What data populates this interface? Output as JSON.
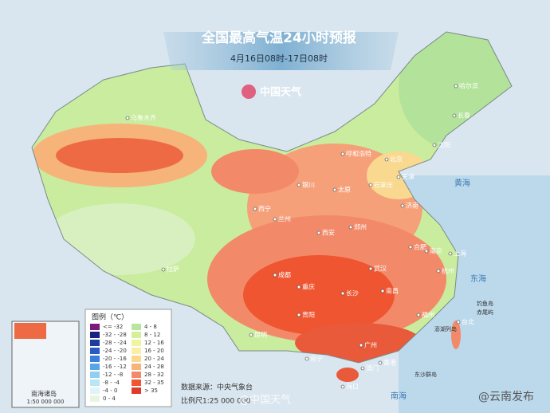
{
  "header": {
    "title": "全国最高气温24小时预报",
    "subtitle": "4月16日08时-17日08时",
    "logo": "中国天气"
  },
  "legend": {
    "title": "图例（℃）",
    "items": [
      {
        "label": "<= -32",
        "color": "#7b1a7b"
      },
      {
        "label": "-32 - -28",
        "color": "#1a237e"
      },
      {
        "label": "-28 - -24",
        "color": "#1f3c9c"
      },
      {
        "label": "-24 - -20",
        "color": "#2a5bc4"
      },
      {
        "label": "-20 - -16",
        "color": "#3a7fd9"
      },
      {
        "label": "-16 - -12",
        "color": "#5aa5e8"
      },
      {
        "label": "-12 - -8",
        "color": "#8fd0f0"
      },
      {
        "label": "-8 - -4",
        "color": "#b7e6f4"
      },
      {
        "label": "-4 - 0",
        "color": "#dff3f8"
      },
      {
        "label": "0 - 4",
        "color": "#e8f6e0"
      },
      {
        "label": "4 - 8",
        "color": "#b8e6a0"
      },
      {
        "label": "8 - 12",
        "color": "#d6ef9a"
      },
      {
        "label": "12 - 16",
        "color": "#eef5a0"
      },
      {
        "label": "16 - 20",
        "color": "#fbefa8"
      },
      {
        "label": "20 - 24",
        "color": "#f9d890"
      },
      {
        "label": "24 - 28",
        "color": "#f6b47a"
      },
      {
        "label": "28 - 32",
        "color": "#f28a6a"
      },
      {
        "label": "32 - 35",
        "color": "#ee5530"
      },
      {
        "label": "> 35",
        "color": "#e23a2a"
      }
    ]
  },
  "cities": [
    "乌鲁木齐",
    "哈尔滨",
    "长春",
    "沈阳",
    "呼和浩特",
    "北京",
    "天津",
    "石家庄",
    "太原",
    "银川",
    "西宁",
    "兰州",
    "西安",
    "郑州",
    "济南",
    "合肥",
    "南京",
    "上海",
    "杭州",
    "武汉",
    "成都",
    "重庆",
    "长沙",
    "南昌",
    "福州",
    "台北",
    "拉萨",
    "贵阳",
    "昆明",
    "南宁",
    "广州",
    "香港",
    "澳门",
    "海口"
  ],
  "seas": [
    "黄海",
    "东海",
    "南海"
  ],
  "islands": [
    "钓鱼岛",
    "赤尾屿",
    "澎湖列岛",
    "东沙群岛"
  ],
  "inset": {
    "title": "南海诸岛",
    "scale": "1:50 000 000"
  },
  "footer": {
    "source": "数据来源：中央气象台",
    "scale": "比例尺1:25 000 000",
    "watermark1": "@中国天气",
    "watermark2": "@云南发布"
  }
}
